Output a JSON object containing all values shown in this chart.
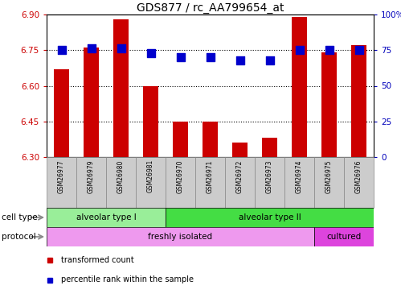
{
  "title": "GDS877 / rc_AA799654_at",
  "samples": [
    "GSM26977",
    "GSM26979",
    "GSM26980",
    "GSM26981",
    "GSM26970",
    "GSM26971",
    "GSM26972",
    "GSM26973",
    "GSM26974",
    "GSM26975",
    "GSM26976"
  ],
  "transformed_count": [
    6.67,
    6.76,
    6.88,
    6.6,
    6.45,
    6.45,
    6.36,
    6.38,
    6.89,
    6.74,
    6.77
  ],
  "percentile_rank": [
    75,
    76,
    76,
    73,
    70,
    70,
    68,
    68,
    75,
    75,
    75
  ],
  "ylim_left": [
    6.3,
    6.9
  ],
  "ylim_right": [
    0,
    100
  ],
  "yticks_left": [
    6.3,
    6.45,
    6.6,
    6.75,
    6.9
  ],
  "yticks_right": [
    0,
    25,
    50,
    75,
    100
  ],
  "hlines": [
    6.45,
    6.6,
    6.75
  ],
  "bar_color": "#cc0000",
  "dot_color": "#0000cc",
  "cell_type_groups": [
    {
      "label": "alveolar type I",
      "start": 0,
      "end": 4,
      "color": "#99ee99"
    },
    {
      "label": "alveolar type II",
      "start": 4,
      "end": 11,
      "color": "#44dd44"
    }
  ],
  "protocol_groups": [
    {
      "label": "freshly isolated",
      "start": 0,
      "end": 9,
      "color": "#ee99ee"
    },
    {
      "label": "cultured",
      "start": 9,
      "end": 11,
      "color": "#dd44dd"
    }
  ],
  "cell_type_label": "cell type",
  "protocol_label": "protocol",
  "legend_items": [
    {
      "label": "transformed count",
      "color": "#cc0000"
    },
    {
      "label": "percentile rank within the sample",
      "color": "#0000cc"
    }
  ],
  "tick_color_left": "#cc0000",
  "tick_color_right": "#0000bb",
  "bar_width": 0.5,
  "dot_size": 45,
  "sample_box_color": "#cccccc",
  "arrow_color": "#888888"
}
